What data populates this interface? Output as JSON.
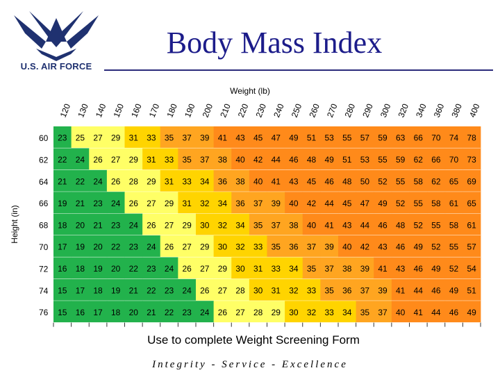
{
  "title": "Body Mass Index",
  "logo": {
    "text": "U.S. AIR FORCE",
    "icon": "air-force-symbol"
  },
  "footer": "Use to complete Weight Screening Form",
  "motto": "Integrity - Service - Excellence",
  "colors": {
    "title": "#1c1c8a",
    "green": "#22b24c",
    "light_yellow": "#ffff66",
    "yellow": "#ffd400",
    "orange": "#ffa520",
    "dark_orange": "#ff8a1a"
  },
  "chart_data": {
    "type": "heatmap",
    "xlabel": "Weight (lb)",
    "ylabel": "Height (in)",
    "x": [
      "120",
      "130",
      "140",
      "150",
      "160",
      "170",
      "180",
      "190",
      "200",
      "210",
      "220",
      "230",
      "240",
      "250",
      "260",
      "270",
      "280",
      "290",
      "300",
      "320",
      "340",
      "360",
      "380",
      "400"
    ],
    "y": [
      "60",
      "62",
      "64",
      "66",
      "68",
      "70",
      "72",
      "74",
      "76"
    ],
    "values": [
      [
        23,
        25,
        27,
        29,
        31,
        33,
        35,
        37,
        39,
        41,
        43,
        45,
        47,
        49,
        51,
        53,
        55,
        57,
        59,
        63,
        66,
        70,
        74,
        78
      ],
      [
        22,
        24,
        26,
        27,
        29,
        31,
        33,
        35,
        37,
        38,
        40,
        42,
        44,
        46,
        48,
        49,
        51,
        53,
        55,
        59,
        62,
        66,
        70,
        73
      ],
      [
        21,
        22,
        24,
        26,
        28,
        29,
        31,
        33,
        34,
        36,
        38,
        40,
        41,
        43,
        45,
        46,
        48,
        50,
        52,
        55,
        58,
        62,
        65,
        69
      ],
      [
        19,
        21,
        23,
        24,
        26,
        27,
        29,
        31,
        32,
        34,
        36,
        37,
        39,
        40,
        42,
        44,
        45,
        47,
        49,
        52,
        55,
        58,
        61,
        65
      ],
      [
        18,
        20,
        21,
        23,
        24,
        26,
        27,
        29,
        30,
        32,
        34,
        35,
        37,
        38,
        40,
        41,
        43,
        44,
        46,
        48,
        52,
        55,
        58,
        61
      ],
      [
        17,
        19,
        20,
        22,
        23,
        24,
        26,
        27,
        29,
        30,
        32,
        33,
        35,
        36,
        37,
        39,
        40,
        42,
        43,
        46,
        49,
        52,
        55,
        57
      ],
      [
        16,
        18,
        19,
        20,
        22,
        23,
        24,
        26,
        27,
        29,
        30,
        31,
        33,
        34,
        35,
        37,
        38,
        39,
        41,
        43,
        46,
        49,
        52,
        54
      ],
      [
        15,
        17,
        18,
        19,
        21,
        22,
        23,
        24,
        26,
        27,
        28,
        30,
        31,
        32,
        33,
        35,
        36,
        37,
        39,
        41,
        44,
        46,
        49,
        51
      ],
      [
        15,
        16,
        17,
        18,
        20,
        21,
        22,
        23,
        24,
        26,
        27,
        28,
        29,
        30,
        32,
        33,
        34,
        35,
        37,
        40,
        41,
        44,
        46,
        49
      ]
    ]
  }
}
